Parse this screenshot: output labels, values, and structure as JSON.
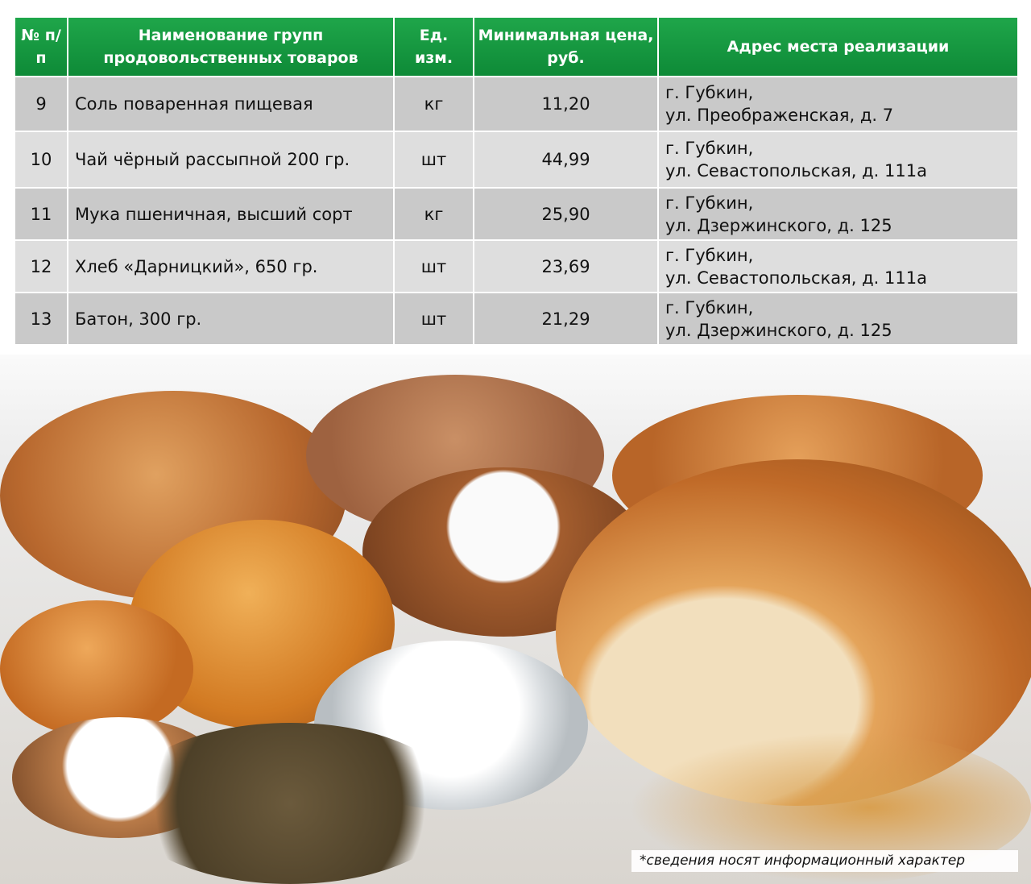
{
  "table": {
    "headers": [
      "№ п/п",
      "Наименование групп продовольственных товаров",
      "Ед. изм.",
      "Минимальная цена, руб.",
      "Адрес места реализации"
    ],
    "rows": [
      {
        "n": "9",
        "name": "Соль поваренная пищевая",
        "unit": "кг",
        "price": "11,20",
        "addr1": "г. Губкин,",
        "addr2": "ул. Преображенская, д. 7"
      },
      {
        "n": "10",
        "name": "Чай чёрный рассыпной 200 гр.",
        "unit": "шт",
        "price": "44,99",
        "addr1": "г. Губкин,",
        "addr2": "ул. Севастопольская, д. 111а"
      },
      {
        "n": "11",
        "name": "Мука пшеничная, высший сорт",
        "unit": "кг",
        "price": "25,90",
        "addr1": "г. Губкин,",
        "addr2": "ул. Дзержинского, д. 125"
      },
      {
        "n": "12",
        "name": "Хлеб «Дарницкий», 650 гр.",
        "unit": "шт",
        "price": "23,69",
        "addr1": "г. Губкин,",
        "addr2": "ул. Севастопольская, д. 111а"
      },
      {
        "n": "13",
        "name": "Батон, 300 гр.",
        "unit": "шт",
        "price": "21,29",
        "addr1": "г. Губкин,",
        "addr2": "ул. Дзержинского, д. 125"
      }
    ]
  },
  "footnote": "*сведения носят информационный характер",
  "colors": {
    "header_green": "#14963f",
    "row_dark": "#c9c9c9",
    "row_light": "#dedede"
  }
}
